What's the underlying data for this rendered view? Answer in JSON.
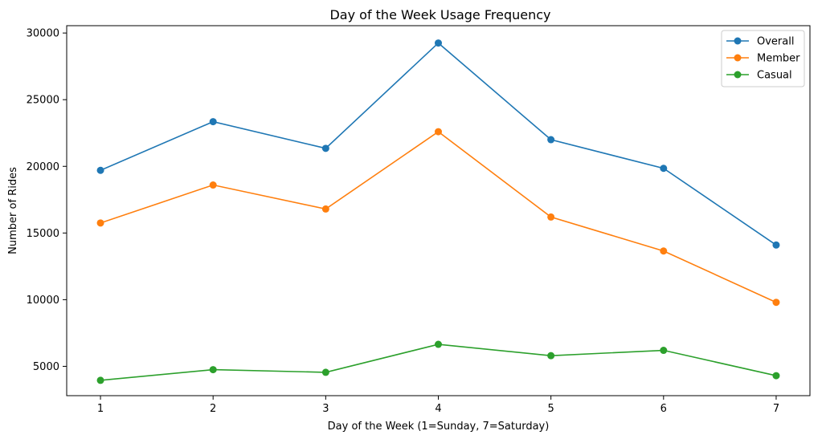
{
  "chart_data": {
    "type": "line",
    "title": "Day of the Week Usage Frequency",
    "xlabel": "Day of the Week (1=Sunday, 7=Saturday)",
    "ylabel": "Number of Rides",
    "x": [
      1,
      2,
      3,
      4,
      5,
      6,
      7
    ],
    "xlim": [
      0.7,
      7.3
    ],
    "ylim": [
      2800,
      30550
    ],
    "xticks": [
      1,
      2,
      3,
      4,
      5,
      6,
      7
    ],
    "yticks": [
      5000,
      10000,
      15000,
      20000,
      25000,
      30000
    ],
    "grid": false,
    "legend_position": "top-right",
    "series": [
      {
        "name": "Overall",
        "color": "#1f77b4",
        "values": [
          19700,
          23350,
          21350,
          29250,
          22000,
          19850,
          14100
        ]
      },
      {
        "name": "Member",
        "color": "#ff7f0e",
        "values": [
          15750,
          18600,
          16800,
          22600,
          16200,
          13650,
          9800
        ]
      },
      {
        "name": "Casual",
        "color": "#2ca02c",
        "values": [
          3950,
          4750,
          4550,
          6650,
          5800,
          6200,
          4300
        ]
      }
    ]
  }
}
